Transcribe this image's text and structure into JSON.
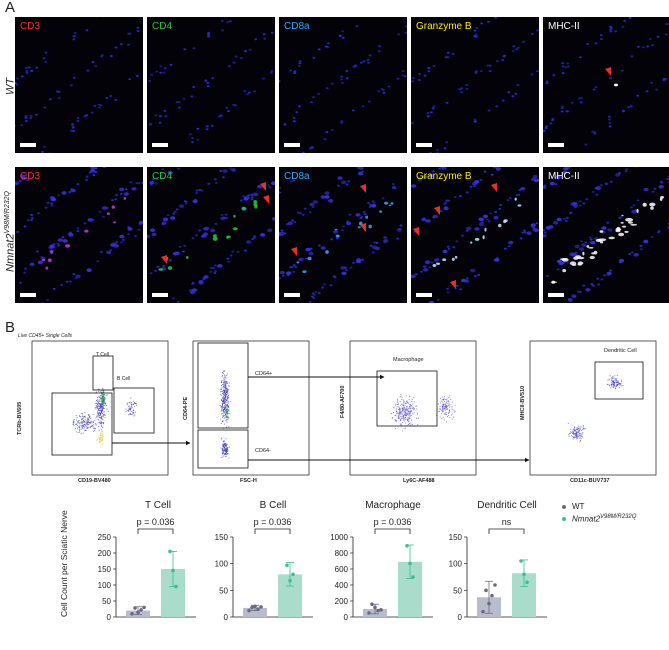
{
  "panel_a": {
    "letter": "A",
    "rows": [
      {
        "label": "WT",
        "label_sup": ""
      },
      {
        "label": "Nmnat2",
        "label_sup": "V98M/R232Q"
      }
    ],
    "channels": [
      {
        "name": "CD3",
        "color": "#ff3030"
      },
      {
        "name": "CD4",
        "color": "#22cc44"
      },
      {
        "name": "CD8a",
        "color": "#33aaff"
      },
      {
        "name": "Granzyme B",
        "color": "#ffee00"
      },
      {
        "name": "MHC-II",
        "color": "#ffffff"
      }
    ],
    "arrowhead_color": "#e8302a"
  },
  "panel_b": {
    "letter": "B",
    "gating_title": "Live CD45+ Single Cells",
    "plot1": {
      "ylabel": "TCRb-BV605",
      "xlabel": "CD19-BV480",
      "gate_t": "T Cell",
      "gate_b": "B Cell"
    },
    "plot2": {
      "ylabel": "CD64-PE",
      "xlabel": "FSC-H",
      "gate_pos": "CD64+",
      "gate_neg": "CD64-"
    },
    "plot3": {
      "ylabel": "F4/80-AF700",
      "xlabel": "Ly6C-AF488",
      "gate": "Macrophage"
    },
    "plot4": {
      "ylabel": "MHCII-BV510",
      "xlabel": "CD11c-BUV737",
      "gate": "Dendritic Cell"
    },
    "ylabel": "Cell Count per Sciatic Nerve",
    "legend": [
      {
        "label": "WT",
        "label_sup": "",
        "color": "#6b6b80"
      },
      {
        "label": "Nmnat2",
        "label_sup": "V98M/R232Q",
        "color": "#3cbf94"
      }
    ],
    "colors": {
      "wt_fill": "#b9bccd",
      "mut_fill": "#a9dcca",
      "wt_point": "#6b6b80",
      "mut_point": "#3cbf94"
    }
  },
  "chart_data": [
    {
      "type": "bar",
      "title": "T Cell",
      "categories": [
        "WT",
        "Nmnat2 V98M/R232Q"
      ],
      "values": [
        20,
        150
      ],
      "error": [
        12,
        55
      ],
      "points": [
        [
          10,
          28,
          15,
          22,
          30
        ],
        [
          205,
          145,
          95
        ]
      ],
      "ylim": [
        0,
        250
      ],
      "yticks": [
        0,
        50,
        100,
        150,
        200,
        250
      ],
      "significance": "p = 0.036"
    },
    {
      "type": "bar",
      "title": "B Cell",
      "categories": [
        "WT",
        "Nmnat2 V98M/R232Q"
      ],
      "values": [
        17,
        80
      ],
      "error": [
        5,
        22
      ],
      "points": [
        [
          12,
          18,
          20,
          15,
          19
        ],
        [
          97,
          68,
          80
        ]
      ],
      "ylim": [
        0,
        150
      ],
      "yticks": [
        0,
        50,
        100,
        150
      ],
      "significance": "p = 0.036"
    },
    {
      "type": "bar",
      "title": "Macrophage",
      "categories": [
        "WT",
        "Nmnat2 V98M/R232Q"
      ],
      "values": [
        100,
        690
      ],
      "error": [
        60,
        210
      ],
      "points": [
        [
          50,
          160,
          120,
          80,
          90
        ],
        [
          890,
          670,
          500
        ]
      ],
      "ylim": [
        0,
        1000
      ],
      "yticks": [
        0,
        200,
        400,
        600,
        800,
        1000
      ],
      "significance": "p = 0.036"
    },
    {
      "type": "bar",
      "title": "Dendritic Cell",
      "categories": [
        "WT",
        "Nmnat2 V98M/R232Q"
      ],
      "values": [
        37,
        82
      ],
      "error": [
        30,
        25
      ],
      "points": [
        [
          10,
          50,
          25,
          40,
          60
        ],
        [
          105,
          80,
          65
        ]
      ],
      "ylim": [
        0,
        150
      ],
      "yticks": [
        0,
        50,
        100,
        150
      ],
      "significance": "ns"
    }
  ]
}
